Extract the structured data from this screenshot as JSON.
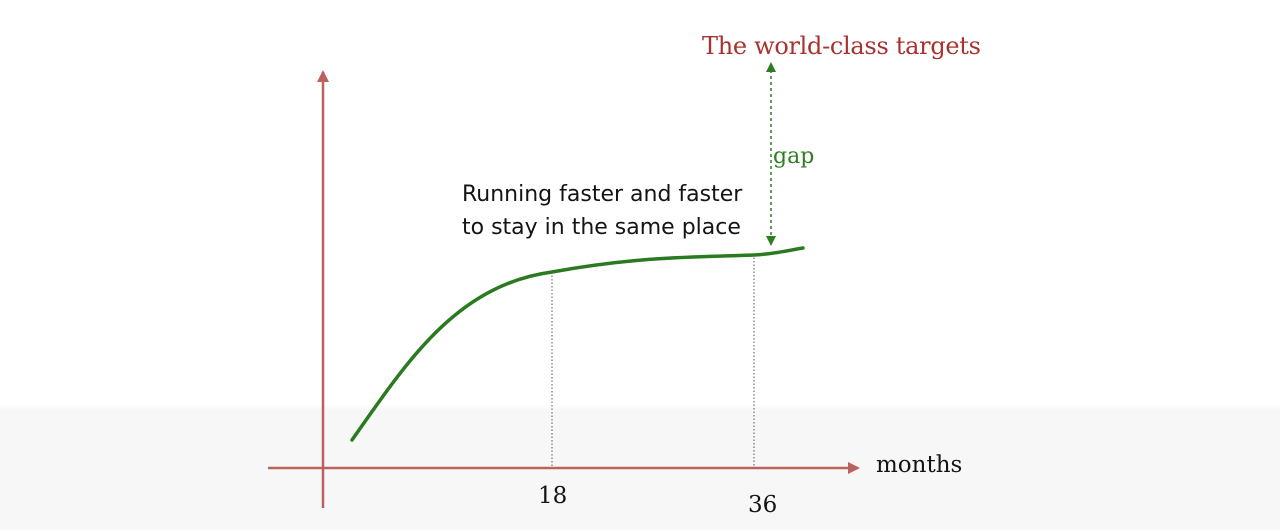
{
  "target_label": "The world-class targets",
  "gap_label": "gap",
  "caption": {
    "line1": "Running faster and faster",
    "line2": "to stay in the same place"
  },
  "x_axis_label": "months",
  "ticks": [
    "18",
    "36"
  ],
  "colors": {
    "axis": "#b8635e",
    "curve": "#2a7a1f",
    "target_text": "#a8322e",
    "gap": "#2f7d22",
    "guide_lines": "#555555",
    "text": "#141414"
  }
}
